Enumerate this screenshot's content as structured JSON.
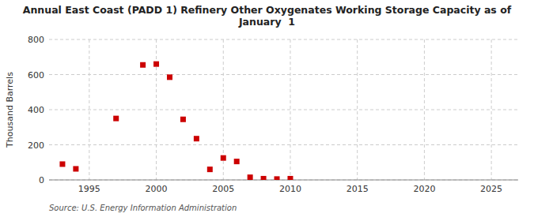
{
  "chart_data": {
    "type": "scatter",
    "title": "Annual East Coast (PADD 1) Refinery Other Oxygenates Working Storage Capacity as of\nJanuary  1",
    "y_label": "Thousand Barrels",
    "annotations": [
      "Source: U.S. Energy Information Administration"
    ],
    "x": [
      1993,
      1994,
      1997,
      1999,
      2000,
      2001,
      2002,
      2003,
      2004,
      2005,
      2006,
      2007,
      2008,
      2009,
      2010
    ],
    "values": [
      90,
      63,
      350,
      655,
      660,
      585,
      345,
      235,
      60,
      125,
      105,
      15,
      7,
      5,
      7
    ],
    "color": "#cc0000",
    "marker": "square",
    "xlim": [
      1992,
      2027
    ],
    "ylim": [
      0,
      800
    ],
    "xticks": [
      1995,
      2000,
      2005,
      2010,
      2015,
      2020,
      2025
    ],
    "yticks": [
      0,
      200,
      400,
      600,
      800
    ],
    "grid": true
  }
}
